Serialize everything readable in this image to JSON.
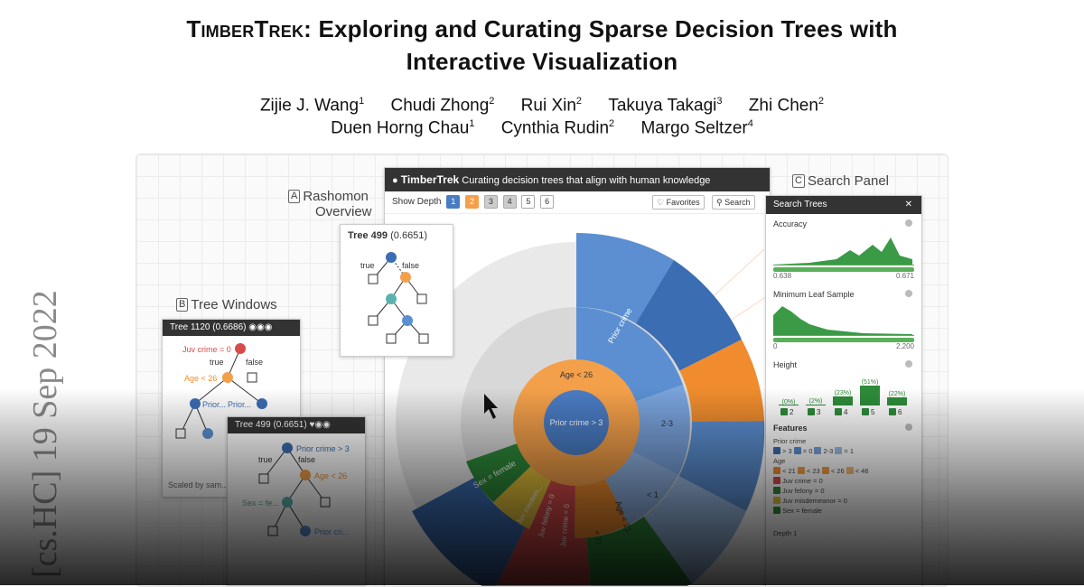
{
  "title": {
    "line1_sc": "TimberTrek",
    "line1_rest": ": Exploring and Curating Sparse Decision Trees with",
    "line2": "Interactive Visualization"
  },
  "authors_row1": [
    {
      "name": "Zijie J. Wang",
      "aff": "1"
    },
    {
      "name": "Chudi Zhong",
      "aff": "2"
    },
    {
      "name": "Rui Xin",
      "aff": "2"
    },
    {
      "name": "Takuya Takagi",
      "aff": "3"
    },
    {
      "name": "Zhi Chen",
      "aff": "2"
    }
  ],
  "authors_row2": [
    {
      "name": "Duen Horng Chau",
      "aff": "1"
    },
    {
      "name": "Cynthia Rudin",
      "aff": "2"
    },
    {
      "name": "Margo Seltzer",
      "aff": "4"
    }
  ],
  "arxiv_stamp": "[cs.HC]  19 Sep 2022",
  "figure": {
    "label_a": {
      "tag": "A",
      "text1": "Rashomon",
      "text2": "Overview"
    },
    "label_b": {
      "tag": "B",
      "text": "Tree Windows"
    },
    "label_c": {
      "tag": "C",
      "text": "Search Panel"
    },
    "main": {
      "app_name": "TimberTrek",
      "tagline": "Curating decision trees that align with human knowledge",
      "show_depth": "Show Depth",
      "depths": [
        "1",
        "2",
        "3",
        "4",
        "5",
        "6"
      ],
      "favorites": "Favorites",
      "search": "Search"
    },
    "sunburst_labels": {
      "center": "Prior crime > 3",
      "ring_top": "Age < 26",
      "prior": "Prior crime",
      "r23": "2-3",
      "lt1": "< 1",
      "sex": "Sex = female",
      "juvm": "Juv misdem...",
      "juvf": "Juv felony = 0",
      "juvc": "Juv crime = 0",
      "lt23": "< 23",
      "age21": "Age < 21"
    },
    "tree499_top": {
      "title": "Tree 499",
      "score": "(0.6651)",
      "true_lbl": "true",
      "false_lbl": "false"
    },
    "tree1120": {
      "title": "Tree 1120",
      "score": "(0.6686)",
      "n1": "Juv crime = 0",
      "true_lbl": "true",
      "false_lbl": "false",
      "n2": "Age < 26",
      "n3": "Prior...",
      "n4": "Prior...",
      "footer": "Scaled by sam..."
    },
    "tree499_win": {
      "title": "Tree 499",
      "score": "(0.6651)",
      "n1": "Prior crime > 3",
      "true_lbl": "true",
      "false_lbl": "false",
      "n2": "Age < 26",
      "n3": "Sex = fe...",
      "n4": "Prior cri..."
    },
    "search_panel": {
      "title": "Search Trees",
      "accuracy": "Accuracy",
      "acc_min": "0.638",
      "acc_max": "0.671",
      "min_leaf": "Minimum Leaf Sample",
      "leaf_min": "0",
      "leaf_max": "2,200",
      "height": "Height",
      "height_bars": [
        {
          "pct": "(0%)",
          "label": "2",
          "level": 0.0
        },
        {
          "pct": "(2%)",
          "label": "3",
          "level": 0.05
        },
        {
          "pct": "(23%)",
          "label": "4",
          "level": 0.45
        },
        {
          "pct": "(51%)",
          "label": "5",
          "level": 1.0
        },
        {
          "pct": "(22%)",
          "label": "6",
          "level": 0.43
        }
      ],
      "features": "Features",
      "prior_crime": "Prior crime",
      "prior_opts": [
        "> 3",
        "= 0",
        "2-3",
        "= 1"
      ],
      "age": "Age",
      "age_opts": [
        "< 21",
        "< 23",
        "< 26",
        "< 46"
      ],
      "feat_rows": [
        "Juv crime = 0",
        "Juv felony = 0",
        "Juv misdemeanor = 0",
        "Sex = female"
      ],
      "depth1": "Depth 1"
    }
  }
}
